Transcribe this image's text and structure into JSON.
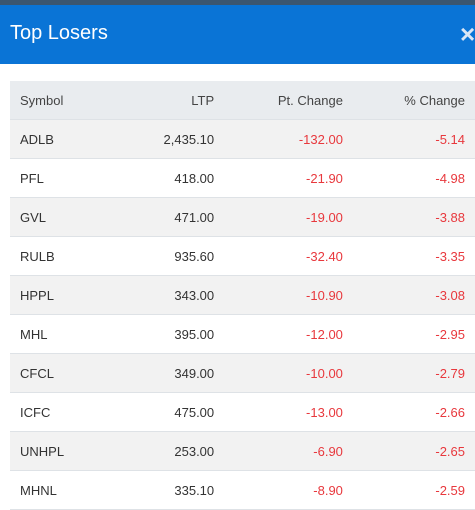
{
  "header": {
    "title": "Top Losers",
    "close": "×"
  },
  "table": {
    "columns": [
      "Symbol",
      "LTP",
      "Pt. Change",
      "% Change"
    ],
    "rows": [
      [
        "ADLB",
        "2,435.10",
        "-132.00",
        "-5.14"
      ],
      [
        "PFL",
        "418.00",
        "-21.90",
        "-4.98"
      ],
      [
        "GVL",
        "471.00",
        "-19.00",
        "-3.88"
      ],
      [
        "RULB",
        "935.60",
        "-32.40",
        "-3.35"
      ],
      [
        "HPPL",
        "343.00",
        "-10.90",
        "-3.08"
      ],
      [
        "MHL",
        "395.00",
        "-12.00",
        "-2.95"
      ],
      [
        "CFCL",
        "349.00",
        "-10.00",
        "-2.79"
      ],
      [
        "ICFC",
        "475.00",
        "-13.00",
        "-2.66"
      ],
      [
        "UNHPL",
        "253.00",
        "-6.90",
        "-2.65"
      ],
      [
        "MHNL",
        "335.10",
        "-8.90",
        "-2.59"
      ]
    ]
  }
}
